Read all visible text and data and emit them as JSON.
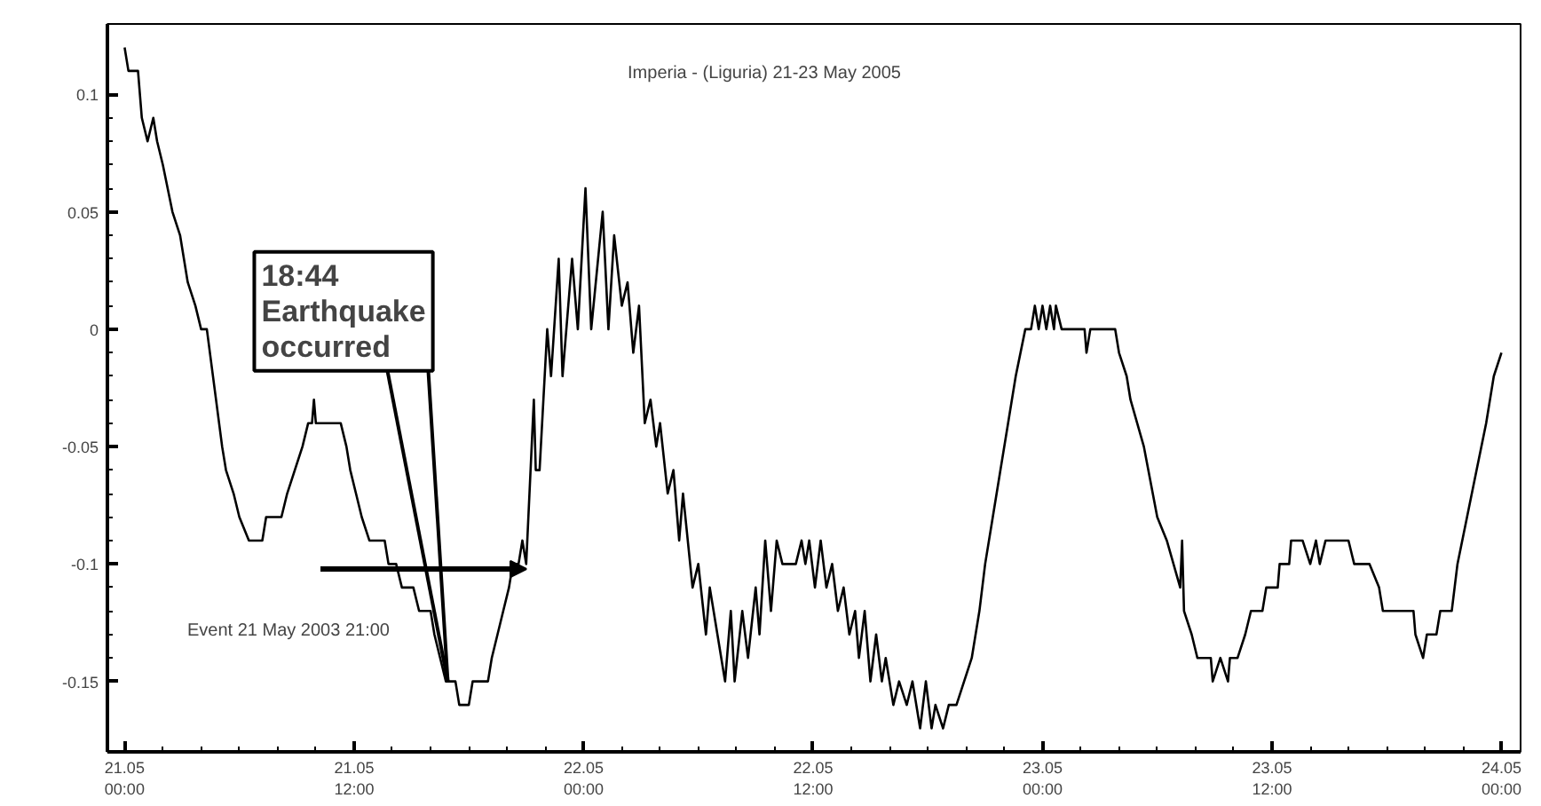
{
  "chart_data": {
    "type": "line",
    "title": "Imperia - (Liguria) 21-23 May 2005",
    "xlim": [
      "2005-05-20T23:06",
      "2005-05-24T01:00"
    ],
    "ylim": [
      -0.18,
      0.13
    ],
    "xticks": [
      {
        "value": "2005-05-21T00:00",
        "label": "21.05\n00:00"
      },
      {
        "value": "2005-05-21T12:00",
        "label": "21.05\n12:00"
      },
      {
        "value": "2005-05-22T00:00",
        "label": "22.05\n00:00"
      },
      {
        "value": "2005-05-22T12:00",
        "label": "22.05\n12:00"
      },
      {
        "value": "2005-05-23T00:00",
        "label": "23.05\n00:00"
      },
      {
        "value": "2005-05-23T12:00",
        "label": "23.05\n12:00"
      },
      {
        "value": "2005-05-24T00:00",
        "label": "24.05\n00:00"
      }
    ],
    "yticks": [
      -0.15,
      -0.1,
      -0.05,
      0,
      0.05,
      0.1
    ],
    "grid": false,
    "annotations": [
      {
        "text": "18:44\nEarthquake\noccurred",
        "x": "2005-05-21T16:54",
        "y": -0.15
      },
      "Event 21 May 2003 21:00"
    ],
    "series": [
      {
        "color": "#000000",
        "x": [
          "2005-05-21T00:00",
          "2005-05-21T00:12",
          "2005-05-21T00:42",
          "2005-05-21T00:54",
          "2005-05-21T01:12",
          "2005-05-21T01:30",
          "2005-05-21T01:42",
          "2005-05-21T02:00",
          "2005-05-21T02:30",
          "2005-05-21T02:54",
          "2005-05-21T03:18",
          "2005-05-21T03:42",
          "2005-05-21T04:00",
          "2005-05-21T04:18",
          "2005-05-21T05:06",
          "2005-05-21T05:18",
          "2005-05-21T05:42",
          "2005-05-21T06:00",
          "2005-05-21T06:30",
          "2005-05-21T07:12",
          "2005-05-21T07:24",
          "2005-05-21T08:12",
          "2005-05-21T08:30",
          "2005-05-21T08:54",
          "2005-05-21T09:18",
          "2005-05-21T09:36",
          "2005-05-21T09:48",
          "2005-05-21T09:54",
          "2005-05-21T10:00",
          "2005-05-21T11:18",
          "2005-05-21T11:36",
          "2005-05-21T11:48",
          "2005-05-21T12:06",
          "2005-05-21T12:24",
          "2005-05-21T12:48",
          "2005-05-21T13:36",
          "2005-05-21T13:48",
          "2005-05-21T14:12",
          "2005-05-21T14:30",
          "2005-05-21T15:06",
          "2005-05-21T15:24",
          "2005-05-21T16:00",
          "2005-05-21T16:12",
          "2005-05-21T16:30",
          "2005-05-21T16:48",
          "2005-05-21T17:18",
          "2005-05-21T17:30",
          "2005-05-21T18:00",
          "2005-05-21T18:12",
          "2005-05-21T19:00",
          "2005-05-21T19:12",
          "2005-05-21T19:30",
          "2005-05-21T19:48",
          "2005-05-21T20:06",
          "2005-05-21T20:18",
          "2005-05-21T20:36",
          "2005-05-21T20:48",
          "2005-05-21T21:00",
          "2005-05-21T21:24",
          "2005-05-21T21:30",
          "2005-05-21T21:42",
          "2005-05-21T22:06",
          "2005-05-21T22:18",
          "2005-05-21T22:42",
          "2005-05-21T22:54",
          "2005-05-21T23:24",
          "2005-05-21T23:42",
          "2005-05-22T00:06",
          "2005-05-22T00:24",
          "2005-05-22T01:00",
          "2005-05-22T01:18",
          "2005-05-22T01:36",
          "2005-05-22T02:00",
          "2005-05-22T02:18",
          "2005-05-22T02:36",
          "2005-05-22T02:54",
          "2005-05-22T03:12",
          "2005-05-22T03:30",
          "2005-05-22T03:48",
          "2005-05-22T04:00",
          "2005-05-22T04:24",
          "2005-05-22T04:42",
          "2005-05-22T05:00",
          "2005-05-22T05:12",
          "2005-05-22T05:42",
          "2005-05-22T06:00",
          "2005-05-22T06:24",
          "2005-05-22T06:36",
          "2005-05-22T07:00",
          "2005-05-22T07:24",
          "2005-05-22T07:42",
          "2005-05-22T07:54",
          "2005-05-22T08:18",
          "2005-05-22T08:36",
          "2005-05-22T09:00",
          "2005-05-22T09:12",
          "2005-05-22T09:30",
          "2005-05-22T09:48",
          "2005-05-22T10:06",
          "2005-05-22T10:24",
          "2005-05-22T11:06",
          "2005-05-22T11:24",
          "2005-05-22T11:36",
          "2005-05-22T11:48",
          "2005-05-22T12:06",
          "2005-05-22T12:24",
          "2005-05-22T12:42",
          "2005-05-22T13:00",
          "2005-05-22T13:18",
          "2005-05-22T13:36",
          "2005-05-22T13:54",
          "2005-05-22T14:12",
          "2005-05-22T14:24",
          "2005-05-22T14:42",
          "2005-05-22T15:00",
          "2005-05-22T15:18",
          "2005-05-22T15:36",
          "2005-05-22T15:48",
          "2005-05-22T16:12",
          "2005-05-22T16:30",
          "2005-05-22T16:54",
          "2005-05-22T17:12",
          "2005-05-22T17:36",
          "2005-05-22T17:54",
          "2005-05-22T18:12",
          "2005-05-22T18:24",
          "2005-05-22T18:48",
          "2005-05-22T19:06",
          "2005-05-22T19:30",
          "2005-05-22T19:54",
          "2005-05-22T20:18",
          "2005-05-22T20:42",
          "2005-05-22T21:00",
          "2005-05-22T21:24",
          "2005-05-22T21:48",
          "2005-05-22T22:12",
          "2005-05-22T22:36",
          "2005-05-22T23:06",
          "2005-05-22T23:24",
          "2005-05-22T23:36",
          "2005-05-22T23:48",
          "2005-05-23T00:00",
          "2005-05-23T00:12",
          "2005-05-23T00:24",
          "2005-05-23T00:36",
          "2005-05-23T00:42",
          "2005-05-23T01:00",
          "2005-05-23T02:12",
          "2005-05-23T02:18",
          "2005-05-23T02:30",
          "2005-05-23T03:48",
          "2005-05-23T04:00",
          "2005-05-23T04:24",
          "2005-05-23T04:36",
          "2005-05-23T05:18",
          "2005-05-23T06:00",
          "2005-05-23T06:30",
          "2005-05-23T07:12",
          "2005-05-23T07:18",
          "2005-05-23T07:24",
          "2005-05-23T07:48",
          "2005-05-23T08:06",
          "2005-05-23T08:48",
          "2005-05-23T08:54",
          "2005-05-23T09:18",
          "2005-05-23T09:42",
          "2005-05-23T09:48",
          "2005-05-23T10:12",
          "2005-05-23T10:36",
          "2005-05-23T10:54",
          "2005-05-23T11:30",
          "2005-05-23T11:42",
          "2005-05-23T12:18",
          "2005-05-23T12:24",
          "2005-05-23T12:54",
          "2005-05-23T13:00",
          "2005-05-23T13:36",
          "2005-05-23T14:00",
          "2005-05-23T14:18",
          "2005-05-23T14:30",
          "2005-05-23T14:48",
          "2005-05-23T16:00",
          "2005-05-23T16:18",
          "2005-05-23T17:06",
          "2005-05-23T17:36",
          "2005-05-23T17:48",
          "2005-05-23T19:24",
          "2005-05-23T19:30",
          "2005-05-23T19:54",
          "2005-05-23T20:06",
          "2005-05-23T20:36",
          "2005-05-23T20:48",
          "2005-05-23T21:24",
          "2005-05-23T21:42",
          "2005-05-23T22:12",
          "2005-05-23T22:42",
          "2005-05-23T23:12",
          "2005-05-23T23:36",
          "2005-05-24T00:00"
        ],
        "values": [
          0.12,
          0.11,
          0.11,
          0.09,
          0.08,
          0.09,
          0.08,
          0.07,
          0.05,
          0.04,
          0.02,
          0.01,
          0,
          0,
          -0.05,
          -0.06,
          -0.07,
          -0.08,
          -0.09,
          -0.09,
          -0.08,
          -0.08,
          -0.07,
          -0.06,
          -0.05,
          -0.04,
          -0.04,
          -0.03,
          -0.04,
          -0.04,
          -0.05,
          -0.06,
          -0.07,
          -0.08,
          -0.09,
          -0.09,
          -0.1,
          -0.1,
          -0.11,
          -0.11,
          -0.12,
          -0.12,
          -0.13,
          -0.14,
          -0.15,
          -0.15,
          -0.16,
          -0.16,
          -0.15,
          -0.15,
          -0.14,
          -0.13,
          -0.12,
          -0.11,
          -0.1,
          -0.1,
          -0.09,
          -0.1,
          -0.03,
          -0.06,
          -0.06,
          0,
          -0.02,
          0.03,
          -0.02,
          0.03,
          0,
          0.06,
          0,
          0.05,
          0,
          0.04,
          0.01,
          0.02,
          -0.01,
          0.01,
          -0.04,
          -0.03,
          -0.05,
          -0.04,
          -0.07,
          -0.06,
          -0.09,
          -0.07,
          -0.11,
          -0.1,
          -0.13,
          -0.11,
          -0.13,
          -0.15,
          -0.12,
          -0.15,
          -0.12,
          -0.14,
          -0.11,
          -0.13,
          -0.09,
          -0.12,
          -0.09,
          -0.1,
          -0.1,
          -0.09,
          -0.1,
          -0.09,
          -0.11,
          -0.09,
          -0.11,
          -0.1,
          -0.12,
          -0.11,
          -0.13,
          -0.12,
          -0.14,
          -0.12,
          -0.15,
          -0.13,
          -0.15,
          -0.14,
          -0.16,
          -0.15,
          -0.16,
          -0.15,
          -0.17,
          -0.15,
          -0.17,
          -0.16,
          -0.17,
          -0.16,
          -0.16,
          -0.15,
          -0.14,
          -0.12,
          -0.1,
          -0.08,
          -0.06,
          -0.04,
          -0.02,
          0,
          0,
          0.01,
          0,
          0.01,
          0,
          0.01,
          0,
          0.01,
          0,
          0,
          -0.01,
          0,
          0,
          -0.01,
          -0.02,
          -0.03,
          -0.05,
          -0.08,
          -0.09,
          -0.11,
          -0.09,
          -0.12,
          -0.13,
          -0.14,
          -0.14,
          -0.15,
          -0.14,
          -0.15,
          -0.14,
          -0.14,
          -0.13,
          -0.12,
          -0.12,
          -0.11,
          -0.11,
          -0.1,
          -0.1,
          -0.09,
          -0.09,
          -0.1,
          -0.09,
          -0.1,
          -0.09,
          -0.09,
          -0.1,
          -0.1,
          -0.11,
          -0.12,
          -0.12,
          -0.13,
          -0.14,
          -0.13,
          -0.13,
          -0.12,
          -0.12,
          -0.1,
          -0.08,
          -0.06,
          -0.04,
          -0.02,
          -0.01
        ]
      }
    ]
  }
}
